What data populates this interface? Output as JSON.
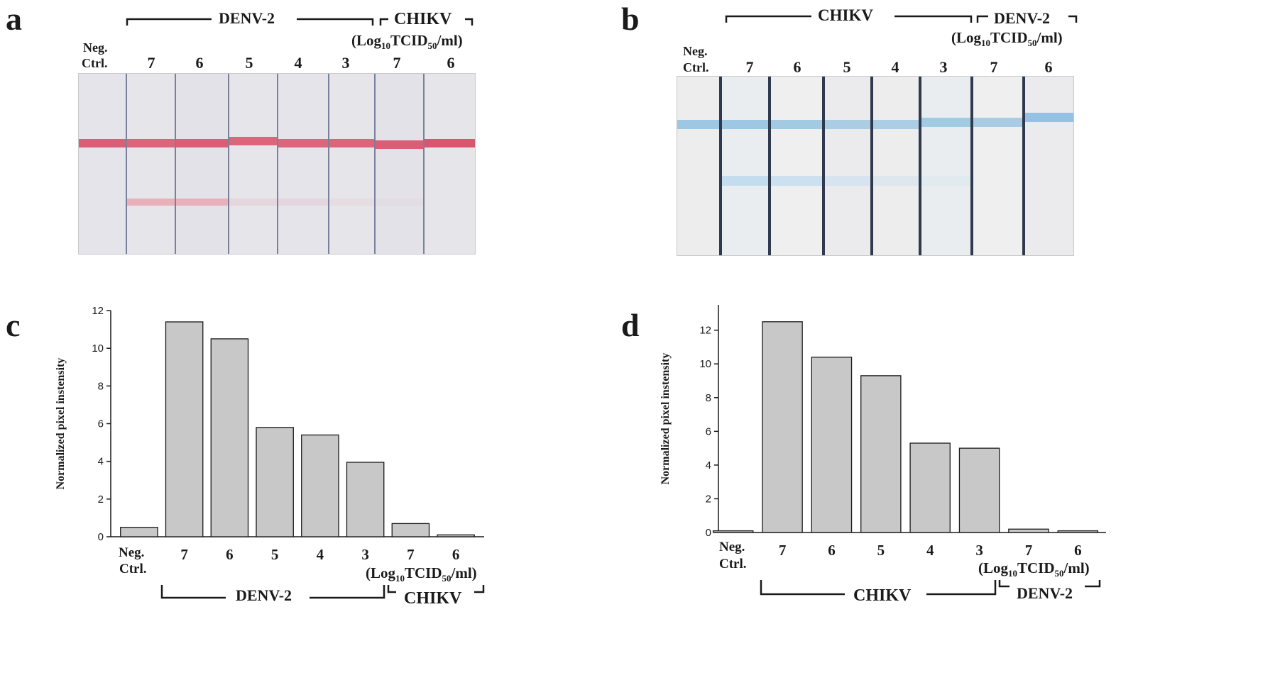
{
  "panels": {
    "a": {
      "letter": "a",
      "bracket_left": "DENV-2",
      "bracket_right": "CHIKV",
      "units": "(Log10TCID50/ml)",
      "units_parts": {
        "pre": "(Log",
        "sub1": "10",
        "mid": "TCID",
        "sub2": "50",
        "post": "/ml)"
      },
      "neg_ctrl": [
        "Neg.",
        "Ctrl."
      ],
      "lanes": [
        "7",
        "6",
        "5",
        "4",
        "3",
        "7",
        "6"
      ],
      "control_line_color": "#d9566f",
      "test_line_color": "#e9a7b3",
      "test_line_intensity": [
        0,
        1,
        1,
        0.3,
        0.25,
        0.15,
        0.1,
        0
      ]
    },
    "b": {
      "letter": "b",
      "bracket_left": "CHIKV",
      "bracket_right": "DENV-2",
      "units_parts": {
        "pre": "(Log",
        "sub1": "10",
        "mid": "TCID",
        "sub2": "50",
        "post": "/ml)"
      },
      "neg_ctrl": [
        "Neg.",
        "Ctrl."
      ],
      "lanes": [
        "7",
        "6",
        "5",
        "4",
        "3",
        "7",
        "6"
      ],
      "control_line_color": "#8fc0e0",
      "test_line_color": "#bcd9ef",
      "test_line_intensity": [
        0,
        1,
        0.8,
        0.5,
        0.35,
        0.2,
        0,
        0
      ]
    },
    "c": {
      "letter": "c",
      "group_left": "DENV-2",
      "group_right": "CHIKV",
      "units_parts": {
        "pre": "(Log",
        "sub1": "10",
        "mid": "TCID",
        "sub2": "50",
        "post": "/ml)"
      },
      "neg_ctrl": [
        "Neg.",
        "Ctrl."
      ]
    },
    "d": {
      "letter": "d",
      "group_left": "CHIKV",
      "group_right": "DENV-2",
      "units_parts": {
        "pre": "(Log",
        "sub1": "10",
        "mid": "TCID",
        "sub2": "50",
        "post": "/ml)"
      },
      "neg_ctrl": [
        "Neg.",
        "Ctrl."
      ]
    }
  },
  "chart_data": [
    {
      "panel": "c",
      "type": "bar",
      "categories": [
        "Neg. Ctrl.",
        "7",
        "6",
        "5",
        "4",
        "3",
        "7",
        "6"
      ],
      "values": [
        0.5,
        11.4,
        10.5,
        5.8,
        5.4,
        3.95,
        0.7,
        0.1
      ],
      "ylabel": "Normalized pixel instensity",
      "xlabel": "(Log10TCID50/ml)",
      "ylim": [
        0,
        12
      ],
      "yticks": [
        0,
        2,
        4,
        6,
        8,
        10,
        12
      ],
      "bar_color": "#c8c8c8",
      "groups": [
        {
          "label": "DENV-2",
          "span": [
            1,
            5
          ]
        },
        {
          "label": "CHIKV",
          "span": [
            6,
            7
          ]
        }
      ]
    },
    {
      "panel": "d",
      "type": "bar",
      "categories": [
        "Neg. Ctrl.",
        "7",
        "6",
        "5",
        "4",
        "3",
        "7",
        "6"
      ],
      "values": [
        0.1,
        12.5,
        10.4,
        9.3,
        5.3,
        5.0,
        0.2,
        0.1
      ],
      "ylabel": "Normalized pixel instensity",
      "xlabel": "(Log10TCID50/ml)",
      "ylim": [
        0,
        13.5
      ],
      "yticks": [
        0,
        2,
        4,
        6,
        8,
        10,
        12
      ],
      "bar_color": "#c8c8c8",
      "groups": [
        {
          "label": "CHIKV",
          "span": [
            1,
            5
          ]
        },
        {
          "label": "DENV-2",
          "span": [
            6,
            7
          ]
        }
      ]
    }
  ]
}
